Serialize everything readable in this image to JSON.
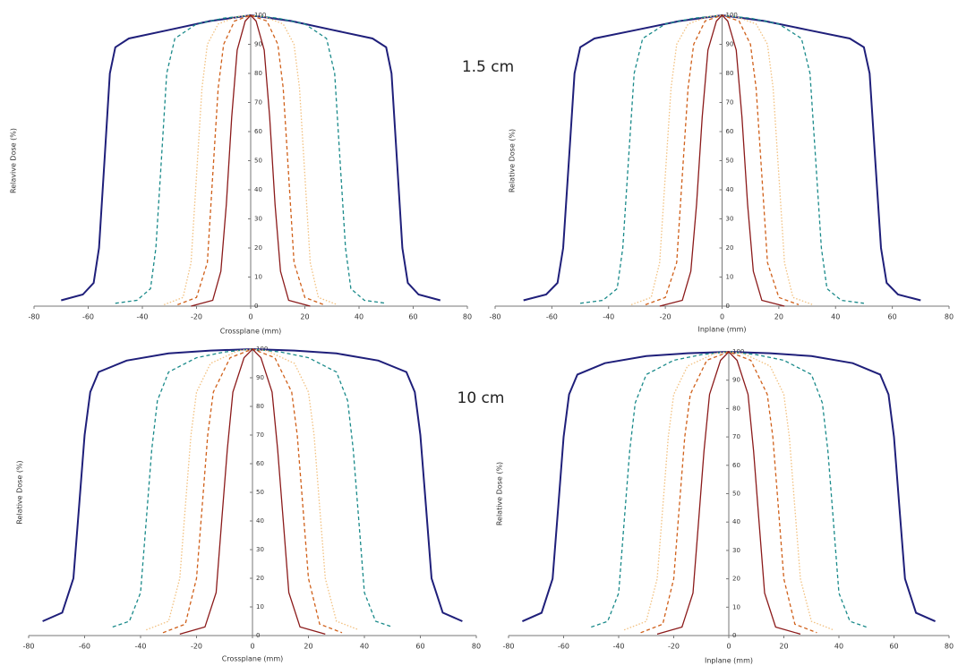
{
  "chart_data": [
    {
      "type": "line",
      "x_label": "Crossplane (mm)",
      "y_label": "Relavive Dose (%)",
      "annotation": "1.5 cm",
      "xlim": [
        -80,
        80
      ],
      "ylim": [
        0,
        100
      ],
      "xticks": [
        -80,
        -60,
        -40,
        -20,
        0,
        20,
        40,
        60,
        80
      ],
      "yticks": [
        0,
        10,
        20,
        30,
        40,
        50,
        60,
        70,
        80,
        90,
        100
      ],
      "series": [
        {
          "color": "#1f1f7a",
          "dash": "solid",
          "x": [
            -70,
            -62,
            -58,
            -56,
            -54,
            -52,
            -50,
            -45,
            -30,
            -15,
            0,
            15,
            30,
            45,
            50,
            52,
            54,
            56,
            58,
            62,
            70
          ],
          "values": [
            2,
            4,
            8,
            20,
            50,
            80,
            89,
            92,
            95,
            98,
            100,
            98,
            95,
            92,
            89,
            80,
            50,
            20,
            8,
            4,
            2
          ]
        },
        {
          "color": "#1a8a8a",
          "dash": "dashed",
          "x": [
            -50,
            -42,
            -37,
            -35,
            -33,
            -31,
            -28,
            -20,
            -10,
            0,
            10,
            20,
            28,
            31,
            33,
            35,
            37,
            42,
            50
          ],
          "values": [
            1,
            2,
            6,
            20,
            50,
            80,
            92,
            97,
            99,
            100,
            99,
            97,
            92,
            80,
            50,
            20,
            6,
            2,
            1
          ]
        },
        {
          "color": "#f2c07f",
          "dash": "dotted",
          "x": [
            -32,
            -25,
            -22,
            -20,
            -18,
            -16,
            -12,
            -5,
            0,
            5,
            12,
            16,
            18,
            20,
            22,
            25,
            32
          ],
          "values": [
            0.5,
            3,
            15,
            45,
            75,
            90,
            97,
            99.5,
            100,
            99.5,
            97,
            90,
            75,
            45,
            15,
            3,
            0.5
          ]
        },
        {
          "color": "#d0601a",
          "dash": "dashed",
          "x": [
            -27,
            -20,
            -16,
            -14,
            -12,
            -10,
            -6,
            0,
            6,
            10,
            12,
            14,
            16,
            20,
            27
          ],
          "values": [
            0.5,
            3,
            15,
            45,
            75,
            90,
            98,
            100,
            98,
            90,
            75,
            45,
            15,
            3,
            0.5
          ]
        },
        {
          "color": "#8b1a1a",
          "dash": "solid",
          "x": [
            -22,
            -14,
            -11,
            -9,
            -7,
            -5,
            -2,
            0,
            2,
            5,
            7,
            9,
            11,
            14,
            22
          ],
          "values": [
            0,
            2,
            12,
            35,
            65,
            88,
            98,
            100,
            98,
            88,
            65,
            35,
            12,
            2,
            0
          ]
        }
      ]
    },
    {
      "type": "line",
      "x_label": "Inplane (mm)",
      "y_label": "Relative Dose (%)",
      "xlim": [
        -80,
        80
      ],
      "ylim": [
        0,
        100
      ],
      "xticks": [
        -80,
        -60,
        -40,
        -20,
        0,
        20,
        40,
        60,
        80
      ],
      "yticks": [
        0,
        10,
        20,
        30,
        40,
        50,
        60,
        70,
        80,
        90,
        100
      ],
      "series": [
        {
          "color": "#1f1f7a",
          "dash": "solid",
          "x": [
            -70,
            -62,
            -58,
            -56,
            -54,
            -52,
            -50,
            -45,
            -30,
            -15,
            0,
            15,
            30,
            45,
            50,
            52,
            54,
            56,
            58,
            62,
            70
          ],
          "values": [
            2,
            4,
            8,
            20,
            50,
            80,
            89,
            92,
            95,
            98,
            100,
            98,
            95,
            92,
            89,
            80,
            50,
            20,
            8,
            4,
            2
          ]
        },
        {
          "color": "#1a8a8a",
          "dash": "dashed",
          "x": [
            -50,
            -42,
            -37,
            -35,
            -33,
            -31,
            -28,
            -20,
            -10,
            0,
            10,
            20,
            28,
            31,
            33,
            35,
            37,
            42,
            50
          ],
          "values": [
            1,
            2,
            6,
            20,
            50,
            80,
            92,
            97,
            99,
            100,
            99,
            97,
            92,
            80,
            50,
            20,
            6,
            2,
            1
          ]
        },
        {
          "color": "#f2c07f",
          "dash": "dotted",
          "x": [
            -32,
            -25,
            -22,
            -20,
            -18,
            -16,
            -12,
            -5,
            0,
            5,
            12,
            16,
            18,
            20,
            22,
            25,
            32
          ],
          "values": [
            0.5,
            3,
            15,
            45,
            75,
            90,
            97,
            99.5,
            100,
            99.5,
            97,
            90,
            75,
            45,
            15,
            3,
            0.5
          ]
        },
        {
          "color": "#d0601a",
          "dash": "dashed",
          "x": [
            -27,
            -20,
            -16,
            -14,
            -12,
            -10,
            -6,
            0,
            6,
            10,
            12,
            14,
            16,
            20,
            27
          ],
          "values": [
            0.5,
            3,
            15,
            45,
            75,
            90,
            98,
            100,
            98,
            90,
            75,
            45,
            15,
            3,
            0.5
          ]
        },
        {
          "color": "#8b1a1a",
          "dash": "solid",
          "x": [
            -22,
            -14,
            -11,
            -9,
            -7,
            -5,
            -2,
            0,
            2,
            5,
            7,
            9,
            11,
            14,
            22
          ],
          "values": [
            0,
            2,
            12,
            35,
            65,
            88,
            98,
            100,
            98,
            88,
            65,
            35,
            12,
            2,
            0
          ]
        }
      ]
    },
    {
      "type": "line",
      "x_label": "Crossplane (mm)",
      "y_label": "Relative Dose (%)",
      "annotation": "10 cm",
      "xlim": [
        -80,
        80
      ],
      "ylim": [
        0,
        100
      ],
      "xticks": [
        -80,
        -60,
        -40,
        -20,
        0,
        20,
        40,
        60,
        80
      ],
      "yticks": [
        0,
        10,
        20,
        30,
        40,
        50,
        60,
        70,
        80,
        90,
        100
      ],
      "series": [
        {
          "color": "#1f1f7a",
          "dash": "solid",
          "x": [
            -75,
            -68,
            -64,
            -62,
            -60,
            -58,
            -55,
            -45,
            -30,
            -15,
            0,
            15,
            30,
            45,
            55,
            58,
            60,
            62,
            64,
            68,
            75
          ],
          "values": [
            5,
            8,
            20,
            45,
            70,
            85,
            92,
            96,
            98.5,
            99.5,
            100,
            99.5,
            98.5,
            96,
            92,
            85,
            70,
            45,
            20,
            8,
            5
          ]
        },
        {
          "color": "#1a8a8a",
          "dash": "dashed",
          "x": [
            -50,
            -44,
            -40,
            -38,
            -36,
            -34,
            -30,
            -20,
            -10,
            0,
            10,
            20,
            30,
            34,
            36,
            38,
            40,
            44,
            50
          ],
          "values": [
            3,
            5,
            15,
            40,
            65,
            82,
            92,
            97,
            99,
            100,
            99,
            97,
            92,
            82,
            65,
            40,
            15,
            5,
            3
          ]
        },
        {
          "color": "#f2c07f",
          "dash": "dotted",
          "x": [
            -38,
            -30,
            -26,
            -24,
            -22,
            -20,
            -15,
            -5,
            0,
            5,
            15,
            20,
            22,
            24,
            26,
            30,
            38
          ],
          "values": [
            2,
            5,
            20,
            45,
            70,
            85,
            95,
            99.5,
            100,
            99.5,
            95,
            85,
            70,
            45,
            20,
            5,
            2
          ]
        },
        {
          "color": "#d0601a",
          "dash": "dashed",
          "x": [
            -32,
            -24,
            -20,
            -18,
            -16,
            -14,
            -8,
            0,
            8,
            14,
            16,
            18,
            20,
            24,
            32
          ],
          "values": [
            1,
            4,
            20,
            45,
            70,
            85,
            97,
            100,
            97,
            85,
            70,
            45,
            20,
            4,
            1
          ]
        },
        {
          "color": "#8b1a1a",
          "dash": "solid",
          "x": [
            -26,
            -17,
            -13,
            -11,
            -9,
            -7,
            -3,
            0,
            3,
            7,
            9,
            11,
            13,
            17,
            26
          ],
          "values": [
            0.5,
            3,
            15,
            40,
            65,
            85,
            97,
            100,
            97,
            85,
            65,
            40,
            15,
            3,
            0.5
          ]
        }
      ]
    },
    {
      "type": "line",
      "x_label": "Inplane (mm)",
      "y_label": "Relative Dose (%)",
      "xlim": [
        -80,
        80
      ],
      "ylim": [
        0,
        100
      ],
      "xticks": [
        -80,
        -60,
        -40,
        -20,
        0,
        20,
        40,
        60,
        80
      ],
      "yticks": [
        0,
        10,
        20,
        30,
        40,
        50,
        60,
        70,
        80,
        90,
        100
      ],
      "series": [
        {
          "color": "#1f1f7a",
          "dash": "solid",
          "x": [
            -75,
            -68,
            -64,
            -62,
            -60,
            -58,
            -55,
            -45,
            -30,
            -15,
            0,
            15,
            30,
            45,
            55,
            58,
            60,
            62,
            64,
            68,
            75
          ],
          "values": [
            5,
            8,
            20,
            45,
            70,
            85,
            92,
            96,
            98.5,
            99.5,
            100,
            99.5,
            98.5,
            96,
            92,
            85,
            70,
            45,
            20,
            8,
            5
          ]
        },
        {
          "color": "#1a8a8a",
          "dash": "dashed",
          "x": [
            -50,
            -44,
            -40,
            -38,
            -36,
            -34,
            -30,
            -20,
            -10,
            0,
            10,
            20,
            30,
            34,
            36,
            38,
            40,
            44,
            50
          ],
          "values": [
            3,
            5,
            15,
            40,
            65,
            82,
            92,
            97,
            99,
            100,
            99,
            97,
            92,
            82,
            65,
            40,
            15,
            5,
            3
          ]
        },
        {
          "color": "#f2c07f",
          "dash": "dotted",
          "x": [
            -38,
            -30,
            -26,
            -24,
            -22,
            -20,
            -15,
            -5,
            0,
            5,
            15,
            20,
            22,
            24,
            26,
            30,
            38
          ],
          "values": [
            2,
            5,
            20,
            45,
            70,
            85,
            95,
            99.5,
            100,
            99.5,
            95,
            85,
            70,
            45,
            20,
            5,
            2
          ]
        },
        {
          "color": "#d0601a",
          "dash": "dashed",
          "x": [
            -32,
            -24,
            -20,
            -18,
            -16,
            -14,
            -8,
            0,
            8,
            14,
            16,
            18,
            20,
            24,
            32
          ],
          "values": [
            1,
            4,
            20,
            45,
            70,
            85,
            97,
            100,
            97,
            85,
            70,
            45,
            20,
            4,
            1
          ]
        },
        {
          "color": "#8b1a1a",
          "dash": "solid",
          "x": [
            -26,
            -17,
            -13,
            -11,
            -9,
            -7,
            -3,
            0,
            3,
            7,
            9,
            11,
            13,
            17,
            26
          ],
          "values": [
            0.5,
            3,
            15,
            40,
            65,
            85,
            97,
            100,
            97,
            85,
            65,
            40,
            15,
            3,
            0.5
          ]
        }
      ]
    }
  ]
}
